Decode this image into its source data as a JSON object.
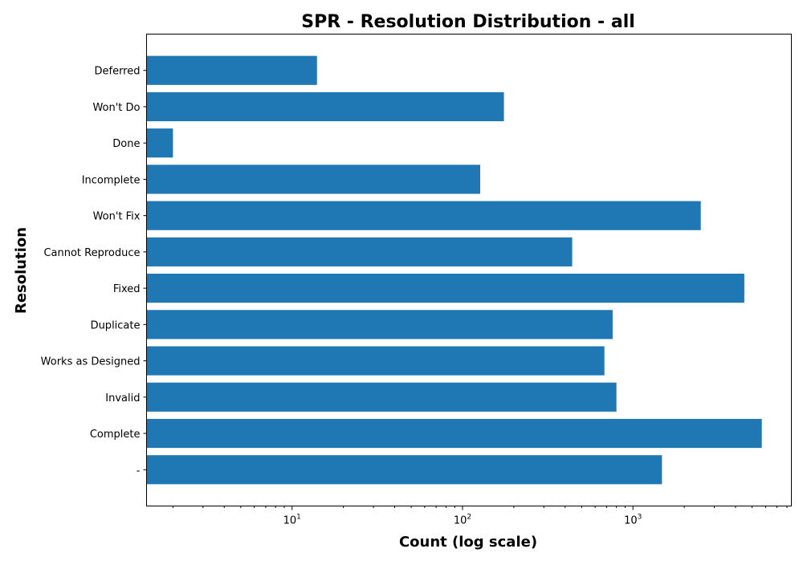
{
  "chart_data": {
    "type": "bar",
    "orientation": "horizontal",
    "title": "SPR - Resolution Distribution - all",
    "xlabel": "Count (log scale)",
    "ylabel": "Resolution",
    "x_scale": "log",
    "xlim": [
      1.4,
      8500
    ],
    "x_ticks": [
      {
        "value": 10,
        "base": "10",
        "exp": "1"
      },
      {
        "value": 100,
        "base": "10",
        "exp": "2"
      },
      {
        "value": 1000,
        "base": "10",
        "exp": "3"
      }
    ],
    "categories": [
      "Deferred",
      "Won't Do",
      "Done",
      "Incomplete",
      "Won't Fix",
      "Cannot Reproduce",
      "Fixed",
      "Duplicate",
      "Works as Designed",
      "Invalid",
      "Complete",
      "-"
    ],
    "values": [
      14,
      175,
      2,
      127,
      2500,
      440,
      4500,
      760,
      680,
      800,
      5700,
      1480
    ],
    "color": "#1f77b4",
    "grid": false,
    "legend": "none"
  }
}
